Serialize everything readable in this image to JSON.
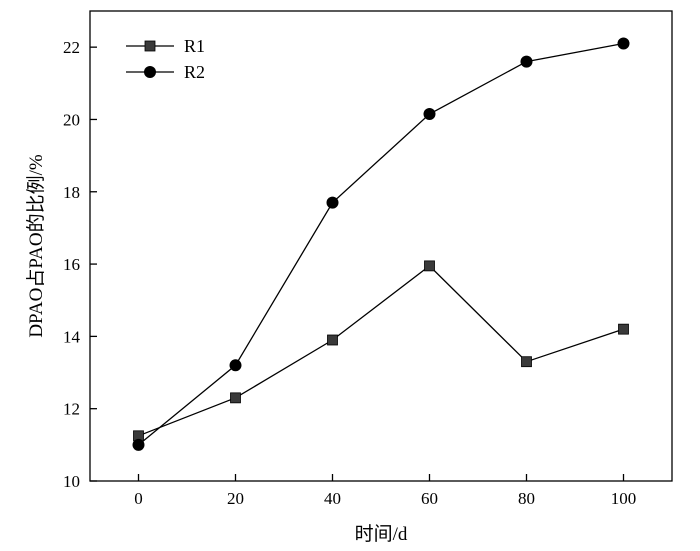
{
  "chart_data": {
    "type": "line",
    "title": "",
    "xlabel": "时间/d",
    "ylabel": "DPAO占PAO的比例/%",
    "x": [
      0,
      20,
      40,
      60,
      80,
      100
    ],
    "xlim": [
      -10,
      110
    ],
    "ylim": [
      10,
      23
    ],
    "xticks": [
      0,
      20,
      40,
      60,
      80,
      100
    ],
    "yticks": [
      10,
      12,
      14,
      16,
      18,
      20,
      22
    ],
    "grid": false,
    "legend_position": "top-left",
    "series": [
      {
        "name": "R1",
        "marker": "square",
        "color": "#3a3a3a",
        "values": [
          11.25,
          12.3,
          13.9,
          15.95,
          13.3,
          14.2
        ]
      },
      {
        "name": "R2",
        "marker": "circle",
        "color": "#000000",
        "values": [
          11.0,
          13.2,
          17.7,
          20.15,
          21.6,
          22.1
        ]
      }
    ]
  }
}
